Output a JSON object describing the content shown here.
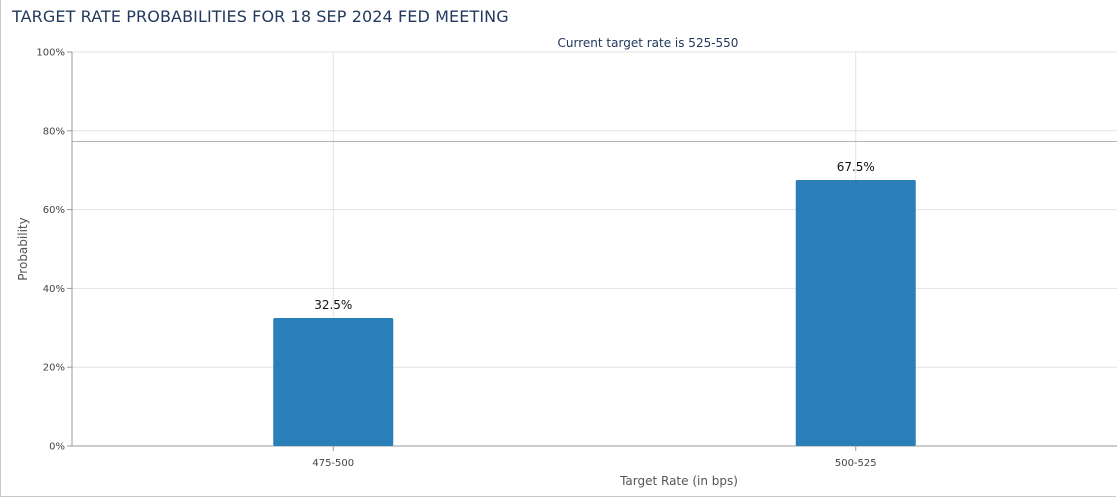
{
  "chart_data": {
    "type": "bar",
    "title": "TARGET RATE PROBABILITIES FOR 18 SEP 2024 FED MEETING",
    "subtitle": "Current target rate is 525-550",
    "xlabel": "Target Rate (in bps)",
    "ylabel": "Probability",
    "categories": [
      "475-500",
      "500-525"
    ],
    "values": [
      32.5,
      67.5
    ],
    "data_labels": [
      "32.5%",
      "67.5%"
    ],
    "ylim": [
      0,
      100
    ],
    "yticks": [
      0,
      20,
      40,
      60,
      80,
      100
    ],
    "ytick_labels": [
      "0%",
      "20%",
      "40%",
      "60%",
      "80%",
      "100%"
    ],
    "grid": true,
    "bar_color": "#2a7fb8",
    "reference_line": 77.3
  }
}
